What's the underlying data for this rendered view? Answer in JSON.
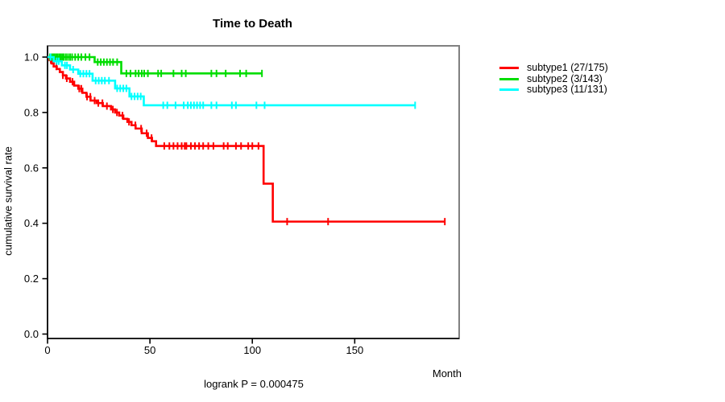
{
  "title": "Time to Death",
  "chart_data": {
    "type": "line",
    "subtype": "kaplan-meier-step",
    "title": "Time to Death",
    "xlabel": "Month",
    "ylabel": "cumulative survival rate",
    "annotation": "logrank P = 0.000475",
    "xlim": [
      0,
      201
    ],
    "ylim": [
      0,
      1.04
    ],
    "xticks": [
      0,
      50,
      100,
      150
    ],
    "yticks": [
      0,
      0.2,
      0.4,
      0.6,
      0.8,
      1.0
    ],
    "ytick_labels": [
      "0.0",
      "0.2",
      "0.4",
      "0.6",
      "0.8",
      "1.0"
    ],
    "grid": false,
    "legend_position": "right",
    "series": [
      {
        "name": "subtype1 (27/175)",
        "color": "#ff0000",
        "end_month": 194,
        "steps": [
          [
            0,
            1.0
          ],
          [
            1,
            0.989
          ],
          [
            2,
            0.977
          ],
          [
            3,
            0.966
          ],
          [
            4.5,
            0.957
          ],
          [
            6,
            0.946
          ],
          [
            7.5,
            0.934
          ],
          [
            9,
            0.923
          ],
          [
            11,
            0.911
          ],
          [
            13,
            0.897
          ],
          [
            15,
            0.886
          ],
          [
            17,
            0.871
          ],
          [
            19,
            0.857
          ],
          [
            21,
            0.843
          ],
          [
            24,
            0.834
          ],
          [
            27,
            0.823
          ],
          [
            31,
            0.811
          ],
          [
            33,
            0.8
          ],
          [
            35,
            0.789
          ],
          [
            37,
            0.777
          ],
          [
            39,
            0.766
          ],
          [
            41,
            0.754
          ],
          [
            43,
            0.742
          ],
          [
            46,
            0.725
          ],
          [
            49,
            0.708
          ],
          [
            51,
            0.696
          ],
          [
            53,
            0.679
          ],
          [
            105.5,
            0.543
          ],
          [
            110,
            0.406
          ]
        ],
        "censor_months": [
          1.6,
          4.3,
          7.5,
          9.4,
          12.2,
          15.5,
          16.5,
          19.3,
          20.9,
          23,
          24.8,
          26.8,
          29,
          31.9,
          33.9,
          36.6,
          39.8,
          42.9,
          45.7,
          48.4,
          50.8,
          57,
          59.5,
          61.5,
          63.5,
          65.5,
          67,
          67.8,
          70,
          72,
          74,
          76,
          78.5,
          81,
          86,
          88,
          92,
          94.5,
          98,
          100,
          103,
          117,
          137,
          194
        ]
      },
      {
        "name": "subtype2 (3/143)",
        "color": "#00dd00",
        "end_month": 104.7,
        "steps": [
          [
            0,
            1.0
          ],
          [
            23,
            0.982
          ],
          [
            36,
            0.941
          ]
        ],
        "censor_months": [
          1.2,
          2,
          2.8,
          3.5,
          4.3,
          5,
          5.8,
          6.5,
          7.3,
          8,
          9,
          10,
          11,
          12,
          13.5,
          15,
          16.5,
          18.5,
          20.5,
          24.5,
          26,
          27.5,
          29,
          30.5,
          32,
          34,
          38.5,
          40.5,
          43,
          44.5,
          46,
          47.2,
          49,
          54,
          55.5,
          61.5,
          65.5,
          67.5,
          80,
          82.5,
          87,
          94,
          97,
          104.7
        ]
      },
      {
        "name": "subtype3 (11/131)",
        "color": "#00ffff",
        "end_month": 179.5,
        "steps": [
          [
            0,
            1.0
          ],
          [
            3,
            0.985
          ],
          [
            7,
            0.97
          ],
          [
            11,
            0.955
          ],
          [
            15,
            0.94
          ],
          [
            22,
            0.915
          ],
          [
            33,
            0.887
          ],
          [
            40,
            0.858
          ],
          [
            47,
            0.826
          ]
        ],
        "censor_months": [
          1.5,
          4.5,
          5.5,
          8.5,
          9.5,
          12.5,
          16,
          17.5,
          19,
          20.5,
          23.5,
          25,
          26.5,
          28,
          30,
          34,
          35.5,
          37,
          38.5,
          41,
          42.5,
          44,
          45.5,
          56.5,
          58.5,
          62.5,
          66.5,
          68.5,
          70,
          71.5,
          73,
          74.5,
          76,
          80,
          82.5,
          90,
          92,
          102,
          106,
          179.5
        ]
      }
    ]
  }
}
